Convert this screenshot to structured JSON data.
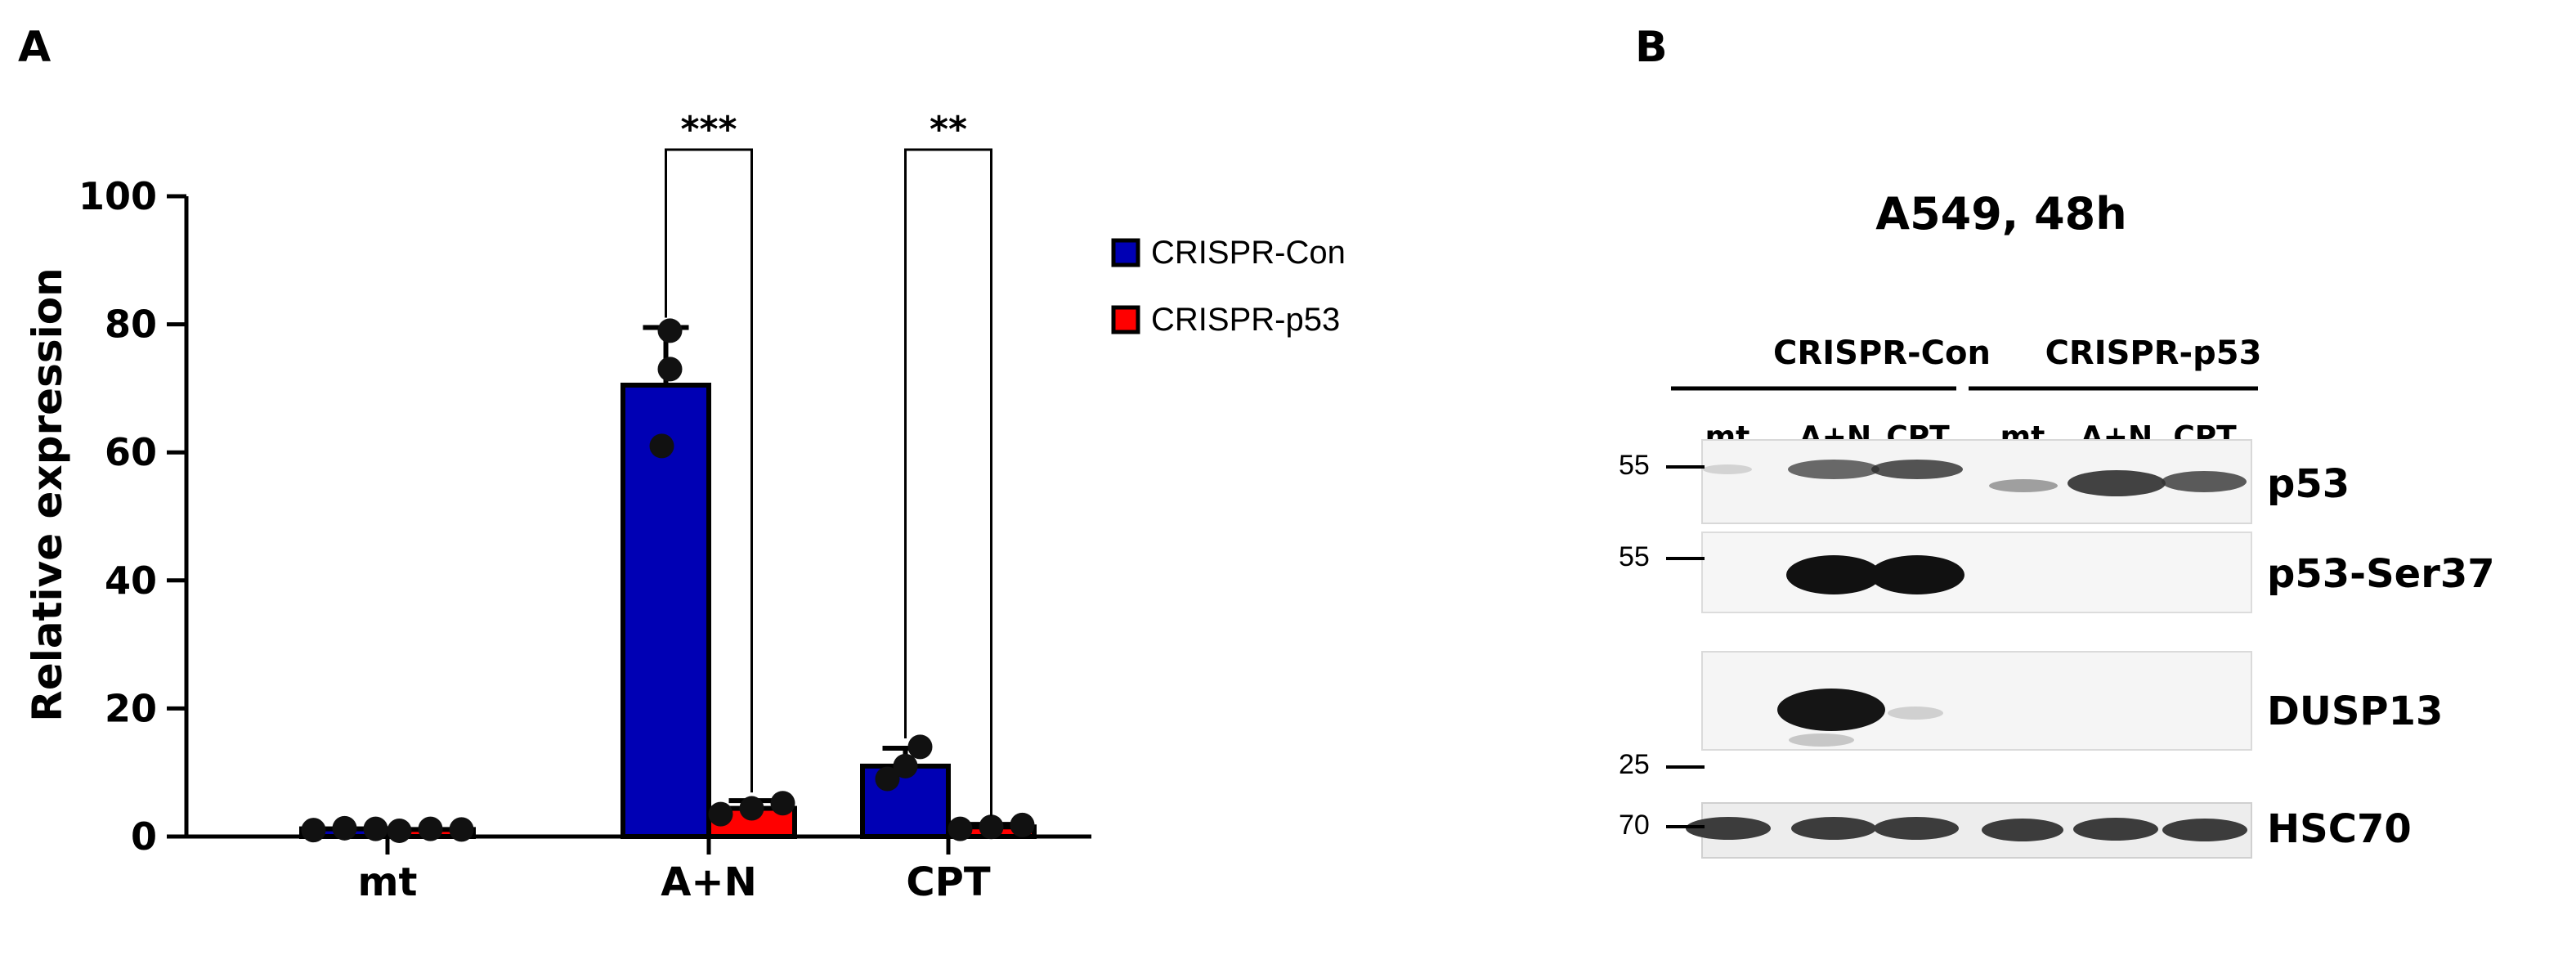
{
  "panel_a_label": "A",
  "panel_b_label": "B",
  "chart_data": {
    "type": "bar",
    "categories": [
      "mt",
      "A+N",
      "CPT"
    ],
    "ylabel": "Relative expression",
    "ylim": [
      0,
      100
    ],
    "yticks": [
      0,
      20,
      40,
      60,
      80,
      100
    ],
    "grid": false,
    "legend_position": "top-right",
    "series": [
      {
        "name": "CRISPR-Con",
        "color": "#0000b4",
        "values": [
          1.2,
          70.5,
          11.0
        ],
        "errors": [
          0.3,
          9.0,
          2.8
        ],
        "points": [
          [
            1.0,
            1.3,
            1.2
          ],
          [
            61,
            73,
            79
          ],
          [
            9,
            11,
            14
          ]
        ]
      },
      {
        "name": "CRISPR-p53",
        "color": "#ff0000",
        "values": [
          1.1,
          4.4,
          1.5
        ],
        "errors": [
          0.3,
          1.2,
          0.4
        ],
        "points": [
          [
            0.9,
            1.2,
            1.1
          ],
          [
            3.5,
            4.4,
            5.2
          ],
          [
            1.2,
            1.5,
            1.8
          ]
        ]
      }
    ],
    "annotations": [
      {
        "category": "A+N",
        "text": "***"
      },
      {
        "category": "CPT",
        "text": "**"
      }
    ]
  },
  "western_blot": {
    "title": "A549, 48h",
    "groups": [
      "CRISPR-Con",
      "CRISPR-p53"
    ],
    "lanes": [
      "mt",
      "A+N",
      "CPT",
      "mt",
      "A+N",
      "CPT"
    ],
    "mw_markers": [
      "55",
      "55",
      "25",
      "70"
    ],
    "proteins": [
      "p53",
      "p53-Ser37",
      "DUSP13",
      "HSC70"
    ]
  }
}
